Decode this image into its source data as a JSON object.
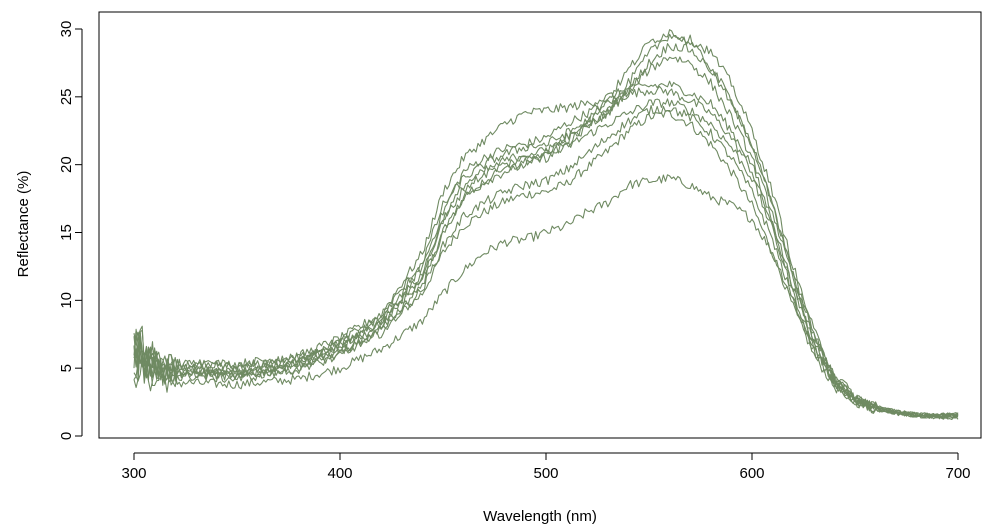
{
  "chart_data": {
    "type": "line",
    "title": "",
    "xlabel": "Wavelength (nm)",
    "ylabel": "Reflectance (%)",
    "xlim": [
      300,
      700
    ],
    "ylim": [
      0,
      30
    ],
    "x_ticks": [
      300,
      400,
      500,
      600,
      700
    ],
    "y_ticks": [
      0,
      5,
      10,
      15,
      20,
      25,
      30
    ],
    "grid": false,
    "legend": "none",
    "line_color": "#6f8a62",
    "noise_amplitude": 0.35,
    "series": [
      {
        "x": [
          300,
          310,
          320,
          330,
          350,
          380,
          400,
          420,
          440,
          450,
          460,
          470,
          480,
          490,
          500,
          510,
          520,
          530,
          540,
          550,
          560,
          570,
          580,
          590,
          600,
          610,
          620,
          630,
          640,
          650,
          660,
          670,
          680,
          690,
          700
        ],
        "y": [
          6.0,
          5.0,
          4.6,
          4.8,
          4.5,
          5.2,
          6.2,
          7.8,
          10.5,
          13.5,
          15.5,
          16.5,
          17.3,
          17.8,
          18.0,
          18.6,
          19.8,
          21.0,
          22.5,
          23.5,
          23.8,
          23.0,
          21.5,
          19.5,
          17.0,
          13.5,
          9.5,
          6.0,
          3.6,
          2.5,
          2.0,
          1.7,
          1.5,
          1.4,
          1.5
        ]
      },
      {
        "x": [
          300,
          310,
          320,
          330,
          350,
          380,
          400,
          420,
          440,
          450,
          460,
          470,
          480,
          490,
          500,
          510,
          520,
          530,
          540,
          550,
          560,
          570,
          580,
          590,
          600,
          610,
          620,
          630,
          640,
          650,
          660,
          670,
          680,
          690,
          700
        ],
        "y": [
          5.5,
          4.4,
          4.0,
          3.9,
          3.8,
          4.2,
          5.0,
          6.4,
          8.5,
          10.5,
          12.2,
          13.5,
          14.3,
          14.5,
          15.0,
          15.5,
          16.5,
          17.2,
          18.5,
          18.8,
          19.0,
          18.5,
          17.6,
          17.0,
          16.0,
          13.5,
          10.0,
          6.5,
          4.0,
          2.6,
          2.0,
          1.7,
          1.5,
          1.4,
          1.3
        ]
      },
      {
        "x": [
          300,
          310,
          320,
          330,
          350,
          380,
          400,
          420,
          440,
          450,
          460,
          470,
          480,
          490,
          500,
          510,
          520,
          530,
          540,
          550,
          560,
          570,
          580,
          590,
          600,
          610,
          620,
          630,
          640,
          650,
          660,
          670,
          680,
          690,
          700
        ],
        "y": [
          6.5,
          5.2,
          5.0,
          5.2,
          5.0,
          5.6,
          6.8,
          8.6,
          12.5,
          16.5,
          19.5,
          20.5,
          21.2,
          21.5,
          22.0,
          23.0,
          23.8,
          24.6,
          25.2,
          25.5,
          25.4,
          24.7,
          23.8,
          22.0,
          19.5,
          15.5,
          10.8,
          6.8,
          4.0,
          2.6,
          2.0,
          1.7,
          1.5,
          1.5,
          1.6
        ]
      },
      {
        "x": [
          300,
          310,
          320,
          330,
          350,
          380,
          400,
          420,
          440,
          450,
          460,
          470,
          480,
          490,
          500,
          510,
          520,
          530,
          540,
          550,
          560,
          570,
          580,
          590,
          600,
          610,
          620,
          630,
          640,
          650,
          660,
          670,
          680,
          690,
          700
        ],
        "y": [
          7.0,
          5.6,
          5.2,
          5.4,
          5.3,
          5.9,
          7.2,
          9.0,
          13.5,
          18.0,
          20.5,
          21.8,
          23.0,
          23.8,
          24.0,
          24.2,
          24.5,
          25.0,
          25.5,
          25.8,
          25.9,
          25.3,
          24.5,
          22.5,
          20.0,
          15.8,
          11.0,
          7.0,
          4.2,
          2.7,
          2.1,
          1.8,
          1.6,
          1.5,
          1.5
        ]
      },
      {
        "x": [
          300,
          310,
          320,
          330,
          350,
          380,
          400,
          420,
          440,
          450,
          460,
          470,
          480,
          490,
          500,
          510,
          520,
          530,
          540,
          550,
          560,
          570,
          580,
          590,
          600,
          610,
          620,
          630,
          640,
          650,
          660,
          670,
          680,
          690,
          700
        ],
        "y": [
          6.2,
          5.0,
          4.7,
          4.8,
          4.6,
          5.4,
          6.6,
          8.4,
          11.5,
          15.0,
          17.5,
          18.7,
          19.5,
          20.0,
          20.5,
          21.3,
          22.2,
          23.0,
          23.8,
          24.5,
          24.6,
          24.0,
          23.0,
          21.3,
          19.0,
          15.2,
          10.5,
          6.6,
          3.9,
          2.6,
          2.0,
          1.7,
          1.5,
          1.4,
          1.5
        ]
      },
      {
        "x": [
          300,
          310,
          320,
          330,
          350,
          380,
          400,
          420,
          440,
          450,
          460,
          470,
          480,
          490,
          500,
          510,
          520,
          530,
          540,
          550,
          560,
          570,
          580,
          590,
          600,
          610,
          620,
          630,
          640,
          650,
          660,
          670,
          680,
          690,
          700
        ],
        "y": [
          5.8,
          4.8,
          4.5,
          4.6,
          4.4,
          5.0,
          6.0,
          7.6,
          10.8,
          14.0,
          16.2,
          17.2,
          18.0,
          18.5,
          18.8,
          19.6,
          20.8,
          22.0,
          23.2,
          24.0,
          24.2,
          23.5,
          22.3,
          20.5,
          18.0,
          14.5,
          10.0,
          6.3,
          3.8,
          2.5,
          1.9,
          1.6,
          1.5,
          1.4,
          1.4
        ]
      },
      {
        "x": [
          300,
          310,
          320,
          330,
          350,
          380,
          400,
          420,
          440,
          450,
          460,
          470,
          480,
          490,
          500,
          510,
          520,
          530,
          540,
          550,
          560,
          570,
          580,
          590,
          600,
          610,
          620,
          630,
          640,
          650,
          660,
          670,
          680,
          690,
          700
        ],
        "y": [
          6.8,
          5.4,
          5.1,
          5.3,
          5.1,
          5.8,
          7.0,
          8.8,
          12.8,
          17.0,
          19.0,
          20.0,
          20.8,
          21.3,
          21.5,
          22.3,
          23.2,
          24.0,
          25.5,
          27.0,
          28.0,
          27.5,
          26.0,
          23.5,
          20.5,
          16.5,
          11.5,
          7.2,
          4.2,
          2.7,
          2.1,
          1.8,
          1.6,
          1.5,
          1.6
        ]
      },
      {
        "x": [
          300,
          310,
          320,
          330,
          350,
          380,
          400,
          420,
          440,
          450,
          460,
          470,
          480,
          490,
          500,
          510,
          520,
          530,
          540,
          550,
          560,
          570,
          580,
          590,
          600,
          610,
          620,
          630,
          640,
          650,
          660,
          670,
          680,
          690,
          700
        ],
        "y": [
          6.3,
          5.1,
          4.8,
          5.0,
          4.8,
          5.5,
          6.6,
          8.5,
          12.0,
          16.0,
          18.5,
          19.5,
          20.3,
          20.8,
          21.0,
          21.8,
          22.8,
          23.8,
          25.5,
          27.5,
          28.8,
          28.5,
          27.0,
          24.5,
          21.5,
          17.0,
          11.8,
          7.4,
          4.3,
          2.8,
          2.2,
          1.8,
          1.6,
          1.5,
          1.6
        ]
      },
      {
        "x": [
          300,
          310,
          320,
          330,
          350,
          380,
          400,
          420,
          440,
          450,
          460,
          470,
          480,
          490,
          500,
          510,
          520,
          530,
          540,
          550,
          560,
          570,
          580,
          590,
          600,
          610,
          620,
          630,
          640,
          650,
          660,
          670,
          680,
          690,
          700
        ],
        "y": [
          5.6,
          4.6,
          4.3,
          4.4,
          4.2,
          4.9,
          6.0,
          7.8,
          11.2,
          15.0,
          17.6,
          18.8,
          19.6,
          20.2,
          20.6,
          21.5,
          22.8,
          24.0,
          26.0,
          28.2,
          29.6,
          29.0,
          27.2,
          24.8,
          21.5,
          17.0,
          12.0,
          7.5,
          4.4,
          2.8,
          2.1,
          1.8,
          1.6,
          1.5,
          1.5
        ]
      },
      {
        "x": [
          300,
          310,
          320,
          330,
          350,
          380,
          400,
          420,
          440,
          450,
          460,
          470,
          480,
          490,
          500,
          510,
          520,
          530,
          540,
          550,
          560,
          570,
          580,
          590,
          600,
          610,
          620,
          630,
          640,
          650,
          660,
          670,
          680,
          690,
          700
        ],
        "y": [
          6.0,
          4.9,
          4.6,
          4.7,
          4.5,
          5.3,
          6.5,
          8.2,
          11.8,
          15.8,
          18.2,
          19.3,
          20.0,
          20.5,
          21.0,
          22.0,
          23.3,
          24.8,
          27.0,
          29.0,
          29.8,
          29.2,
          28.3,
          26.0,
          22.5,
          18.0,
          12.5,
          7.8,
          4.6,
          2.9,
          2.2,
          1.8,
          1.6,
          1.5,
          1.7
        ]
      }
    ]
  }
}
